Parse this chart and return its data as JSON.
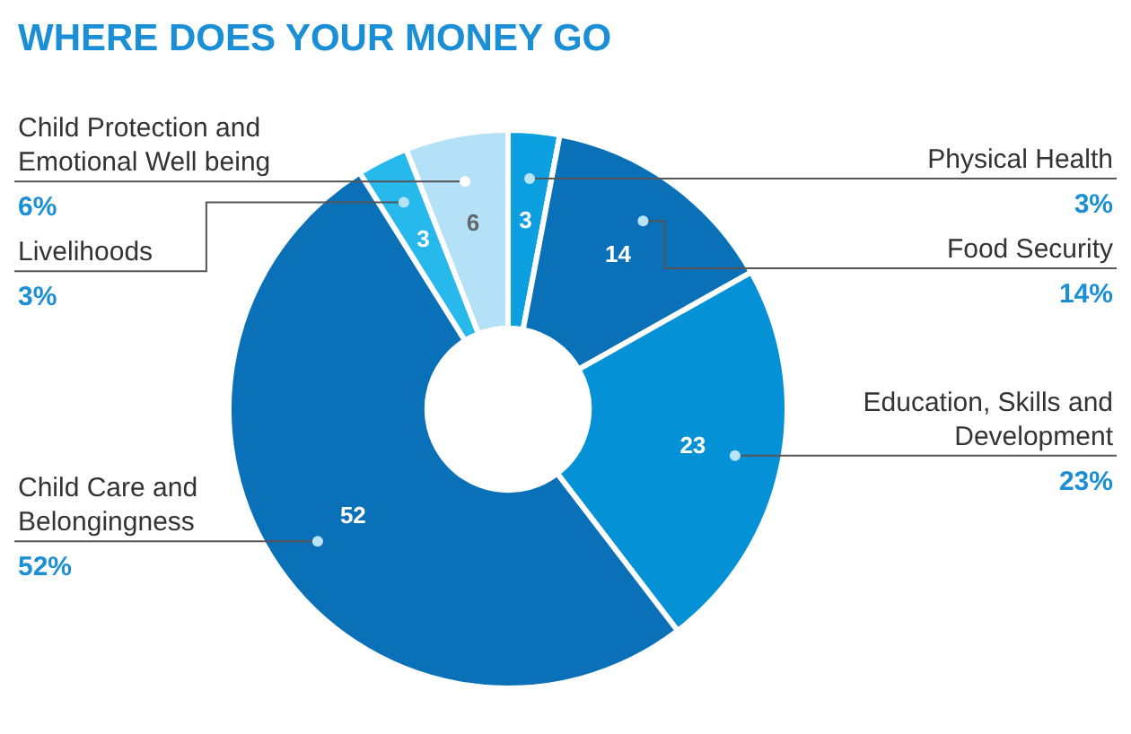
{
  "chart_data": {
    "type": "donut",
    "title": "WHERE DOES YOUR MONEY GO",
    "categories": [
      "Physical Health",
      "Food Security",
      "Education, Skills and Development",
      "Child Care and Belongingness",
      "Livelihoods",
      "Child Protection and Emotional Well being"
    ],
    "values": [
      3,
      14,
      23,
      52,
      3,
      6
    ],
    "colors": [
      "#0ca0e0",
      "#0a71b9",
      "#0591d6",
      "#0a71b9",
      "#27b8ec",
      "#b5e1f8"
    ],
    "annotations": [
      "3%",
      "14%",
      "23%",
      "52%",
      "3%",
      "6%"
    ],
    "data_labels": true,
    "legend": false
  }
}
